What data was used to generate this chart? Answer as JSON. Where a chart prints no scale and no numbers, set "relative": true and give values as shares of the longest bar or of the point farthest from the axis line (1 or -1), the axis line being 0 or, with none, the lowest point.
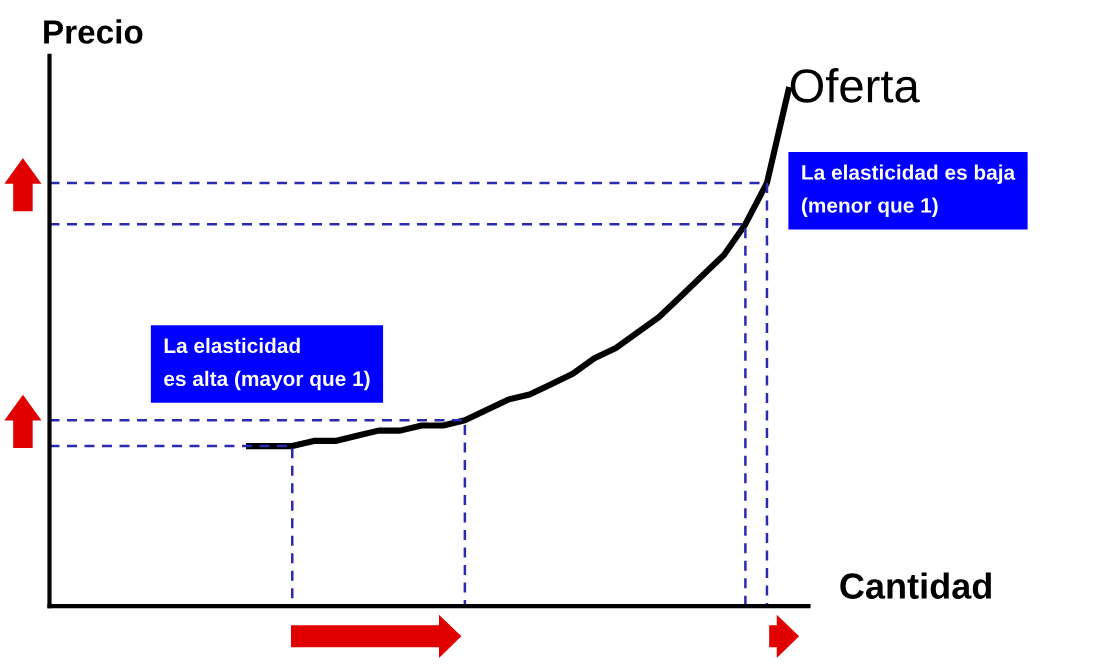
{
  "chart_data": {
    "type": "line",
    "relative": true,
    "xlabel": "Cantidad",
    "ylabel": "Precio",
    "annotations": [
      "La elasticidad\nes alta (mayor que 1)",
      "La elasticidad es baja\n(menor que 1)"
    ],
    "categories": [
      null,
      null,
      null,
      null,
      null,
      null,
      null,
      null,
      null,
      null,
      null,
      null,
      null,
      null,
      null,
      null,
      null,
      null,
      null,
      null,
      null,
      null,
      null,
      null,
      null,
      null
    ],
    "series": [
      {
        "name": "Oferta",
        "color": "#000000",
        "values": [
          0.31,
          0.31,
          0.31,
          0.32,
          0.32,
          0.33,
          0.34,
          0.34,
          0.35,
          0.35,
          0.36,
          0.38,
          0.4,
          0.41,
          0.43,
          0.45,
          0.48,
          0.5,
          0.53,
          0.56,
          0.6,
          0.64,
          0.68,
          0.74,
          0.82,
          1.0
        ]
      }
    ],
    "ref_lines": [
      {
        "axis": "y",
        "value": 0.31,
        "color": "#2b2bb0",
        "line_style": "dashed"
      },
      {
        "axis": "y",
        "value": 0.36,
        "color": "#2b2bb0",
        "line_style": "dashed"
      },
      {
        "axis": "y",
        "value": 0.74,
        "color": "#2b2bb0",
        "line_style": "dashed"
      },
      {
        "axis": "y",
        "value": 0.82,
        "color": "#2b2bb0",
        "line_style": "dashed"
      }
    ]
  }
}
